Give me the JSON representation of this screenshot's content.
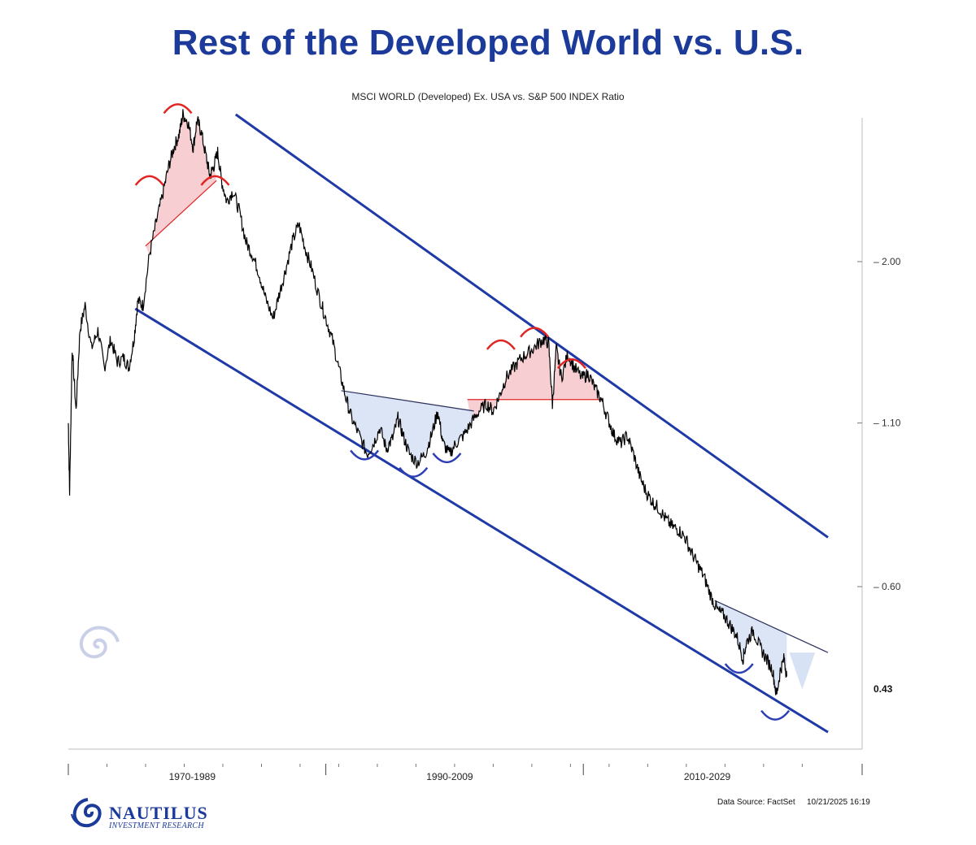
{
  "header": {
    "title": "Rest of the Developed World vs. U.S.",
    "subtitle": "MSCI WORLD (Developed) Ex. USA vs. S&P 500 INDEX Ratio"
  },
  "footer": {
    "source": "Data Source: FactSet",
    "timestamp": "10/21/2025 16:19"
  },
  "logo": {
    "name": "NAUTILUS",
    "tagline": "INVESTMENT RESEARCH",
    "watermark": "NAUTILUS"
  },
  "colors": {
    "title": "#1b3a9a",
    "channel": "#1f3aa6",
    "top_pattern_fill": "#f6c9cc",
    "top_pattern_stroke": "#e02525",
    "bottom_pattern_fill": "#d8e2f5",
    "bottom_pattern_stroke": "#2d3fb5",
    "price_line": "#000000"
  },
  "chart_data": {
    "type": "line",
    "title": "MSCI WORLD (Developed) Ex. USA vs. S&P 500 INDEX Ratio",
    "x_axis": {
      "tick_labels": [
        "1970-1989",
        "1990-2009",
        "2010-2029"
      ]
    },
    "y_axis": {
      "scale": "log",
      "ticks": [
        2.0,
        1.1,
        0.6
      ],
      "tick_labels": [
        "2.00",
        "1.10",
        "0.60"
      ],
      "last_value_label": "0.43",
      "range": [
        0.35,
        3.5
      ]
    },
    "series": [
      {
        "values": [
          [
            1970.0,
            1.1
          ],
          [
            1970.1,
            0.85
          ],
          [
            1970.3,
            1.45
          ],
          [
            1970.6,
            1.15
          ],
          [
            1970.9,
            1.55
          ],
          [
            1971.3,
            1.7
          ],
          [
            1971.8,
            1.45
          ],
          [
            1972.3,
            1.55
          ],
          [
            1972.8,
            1.35
          ],
          [
            1973.3,
            1.5
          ],
          [
            1973.8,
            1.38
          ],
          [
            1974.3,
            1.4
          ],
          [
            1974.7,
            1.35
          ],
          [
            1975.1,
            1.5
          ],
          [
            1975.4,
            1.73
          ],
          [
            1975.8,
            1.7
          ],
          [
            1976.3,
            2.05
          ],
          [
            1976.8,
            2.3
          ],
          [
            1977.3,
            2.55
          ],
          [
            1977.8,
            2.85
          ],
          [
            1978.2,
            3.05
          ],
          [
            1978.6,
            3.2
          ],
          [
            1978.9,
            3.45
          ],
          [
            1979.3,
            3.35
          ],
          [
            1979.7,
            3.05
          ],
          [
            1980.0,
            3.38
          ],
          [
            1980.3,
            3.25
          ],
          [
            1980.7,
            2.95
          ],
          [
            1981.0,
            2.75
          ],
          [
            1981.3,
            2.85
          ],
          [
            1981.6,
            3.0
          ],
          [
            1981.9,
            2.7
          ],
          [
            1982.3,
            2.5
          ],
          [
            1982.8,
            2.6
          ],
          [
            1983.3,
            2.4
          ],
          [
            1983.8,
            2.15
          ],
          [
            1984.3,
            2.05
          ],
          [
            1984.8,
            1.92
          ],
          [
            1985.3,
            1.75
          ],
          [
            1985.9,
            1.62
          ],
          [
            1986.4,
            1.78
          ],
          [
            1986.9,
            1.95
          ],
          [
            1987.4,
            2.15
          ],
          [
            1987.9,
            2.3
          ],
          [
            1988.4,
            2.1
          ],
          [
            1988.9,
            1.95
          ],
          [
            1989.5,
            1.75
          ],
          [
            1990.0,
            1.62
          ],
          [
            1990.5,
            1.5
          ],
          [
            1991.0,
            1.35
          ],
          [
            1991.5,
            1.22
          ],
          [
            1992.0,
            1.12
          ],
          [
            1992.6,
            1.05
          ],
          [
            1993.2,
            0.98
          ],
          [
            1993.7,
            1.02
          ],
          [
            1994.2,
            1.08
          ],
          [
            1994.7,
            1.0
          ],
          [
            1995.2,
            1.04
          ],
          [
            1995.6,
            1.12
          ],
          [
            1996.0,
            1.05
          ],
          [
            1996.5,
            0.98
          ],
          [
            1997.1,
            0.95
          ],
          [
            1997.7,
            0.98
          ],
          [
            1998.2,
            1.05
          ],
          [
            1998.7,
            1.15
          ],
          [
            1999.1,
            1.02
          ],
          [
            1999.6,
            0.98
          ],
          [
            2000.1,
            1.02
          ],
          [
            2000.7,
            1.05
          ],
          [
            2001.3,
            1.1
          ],
          [
            2001.9,
            1.15
          ],
          [
            2002.5,
            1.18
          ],
          [
            2003.0,
            1.15
          ],
          [
            2003.5,
            1.22
          ],
          [
            2004.0,
            1.3
          ],
          [
            2004.6,
            1.35
          ],
          [
            2005.2,
            1.4
          ],
          [
            2005.8,
            1.43
          ],
          [
            2006.4,
            1.47
          ],
          [
            2006.9,
            1.5
          ],
          [
            2007.3,
            1.48
          ],
          [
            2007.6,
            1.18
          ],
          [
            2007.9,
            1.45
          ],
          [
            2008.3,
            1.3
          ],
          [
            2008.8,
            1.42
          ],
          [
            2009.3,
            1.35
          ],
          [
            2009.9,
            1.3
          ],
          [
            2010.4,
            1.32
          ],
          [
            2010.9,
            1.25
          ],
          [
            2011.4,
            1.2
          ],
          [
            2011.9,
            1.12
          ],
          [
            2012.4,
            1.05
          ],
          [
            2012.9,
            1.02
          ],
          [
            2013.4,
            1.05
          ],
          [
            2013.9,
            0.98
          ],
          [
            2014.4,
            0.9
          ],
          [
            2014.9,
            0.85
          ],
          [
            2015.4,
            0.82
          ],
          [
            2015.9,
            0.8
          ],
          [
            2016.4,
            0.77
          ],
          [
            2016.9,
            0.75
          ],
          [
            2017.4,
            0.74
          ],
          [
            2017.9,
            0.72
          ],
          [
            2018.4,
            0.68
          ],
          [
            2018.9,
            0.65
          ],
          [
            2019.4,
            0.62
          ],
          [
            2019.9,
            0.58
          ],
          [
            2020.4,
            0.55
          ],
          [
            2020.9,
            0.54
          ],
          [
            2021.4,
            0.52
          ],
          [
            2021.9,
            0.5
          ],
          [
            2022.4,
            0.46
          ],
          [
            2022.7,
            0.49
          ],
          [
            2023.2,
            0.51
          ],
          [
            2023.7,
            0.48
          ],
          [
            2024.2,
            0.46
          ],
          [
            2024.7,
            0.44
          ],
          [
            2025.0,
            0.4
          ],
          [
            2025.3,
            0.44
          ],
          [
            2025.6,
            0.46
          ],
          [
            2025.8,
            0.43
          ]
        ]
      }
    ],
    "trend_channel": {
      "upper": [
        [
          1983.0,
          3.45
        ],
        [
          2029.0,
          0.72
        ]
      ],
      "lower": [
        [
          1975.2,
          1.68
        ],
        [
          2029.0,
          0.35
        ]
      ]
    },
    "annotations": [
      {
        "type": "top-pattern",
        "period": "1977-1982",
        "neckline": [
          [
            1976.0,
            2.12
          ],
          [
            1981.5,
            2.7
          ]
        ]
      },
      {
        "type": "top-pattern",
        "period": "2002-2012",
        "neckline": [
          [
            2001.0,
            1.2
          ],
          [
            2011.5,
            1.2
          ]
        ]
      },
      {
        "type": "bottom-pattern",
        "period": "1990-2002",
        "neckline": [
          [
            1991.2,
            1.24
          ],
          [
            2001.5,
            1.15
          ]
        ]
      },
      {
        "type": "bottom-pattern",
        "period": "2020-2027",
        "neckline": [
          [
            2020.2,
            0.57
          ],
          [
            2029.0,
            0.47
          ]
        ]
      }
    ],
    "grid": false,
    "legend": "none"
  }
}
